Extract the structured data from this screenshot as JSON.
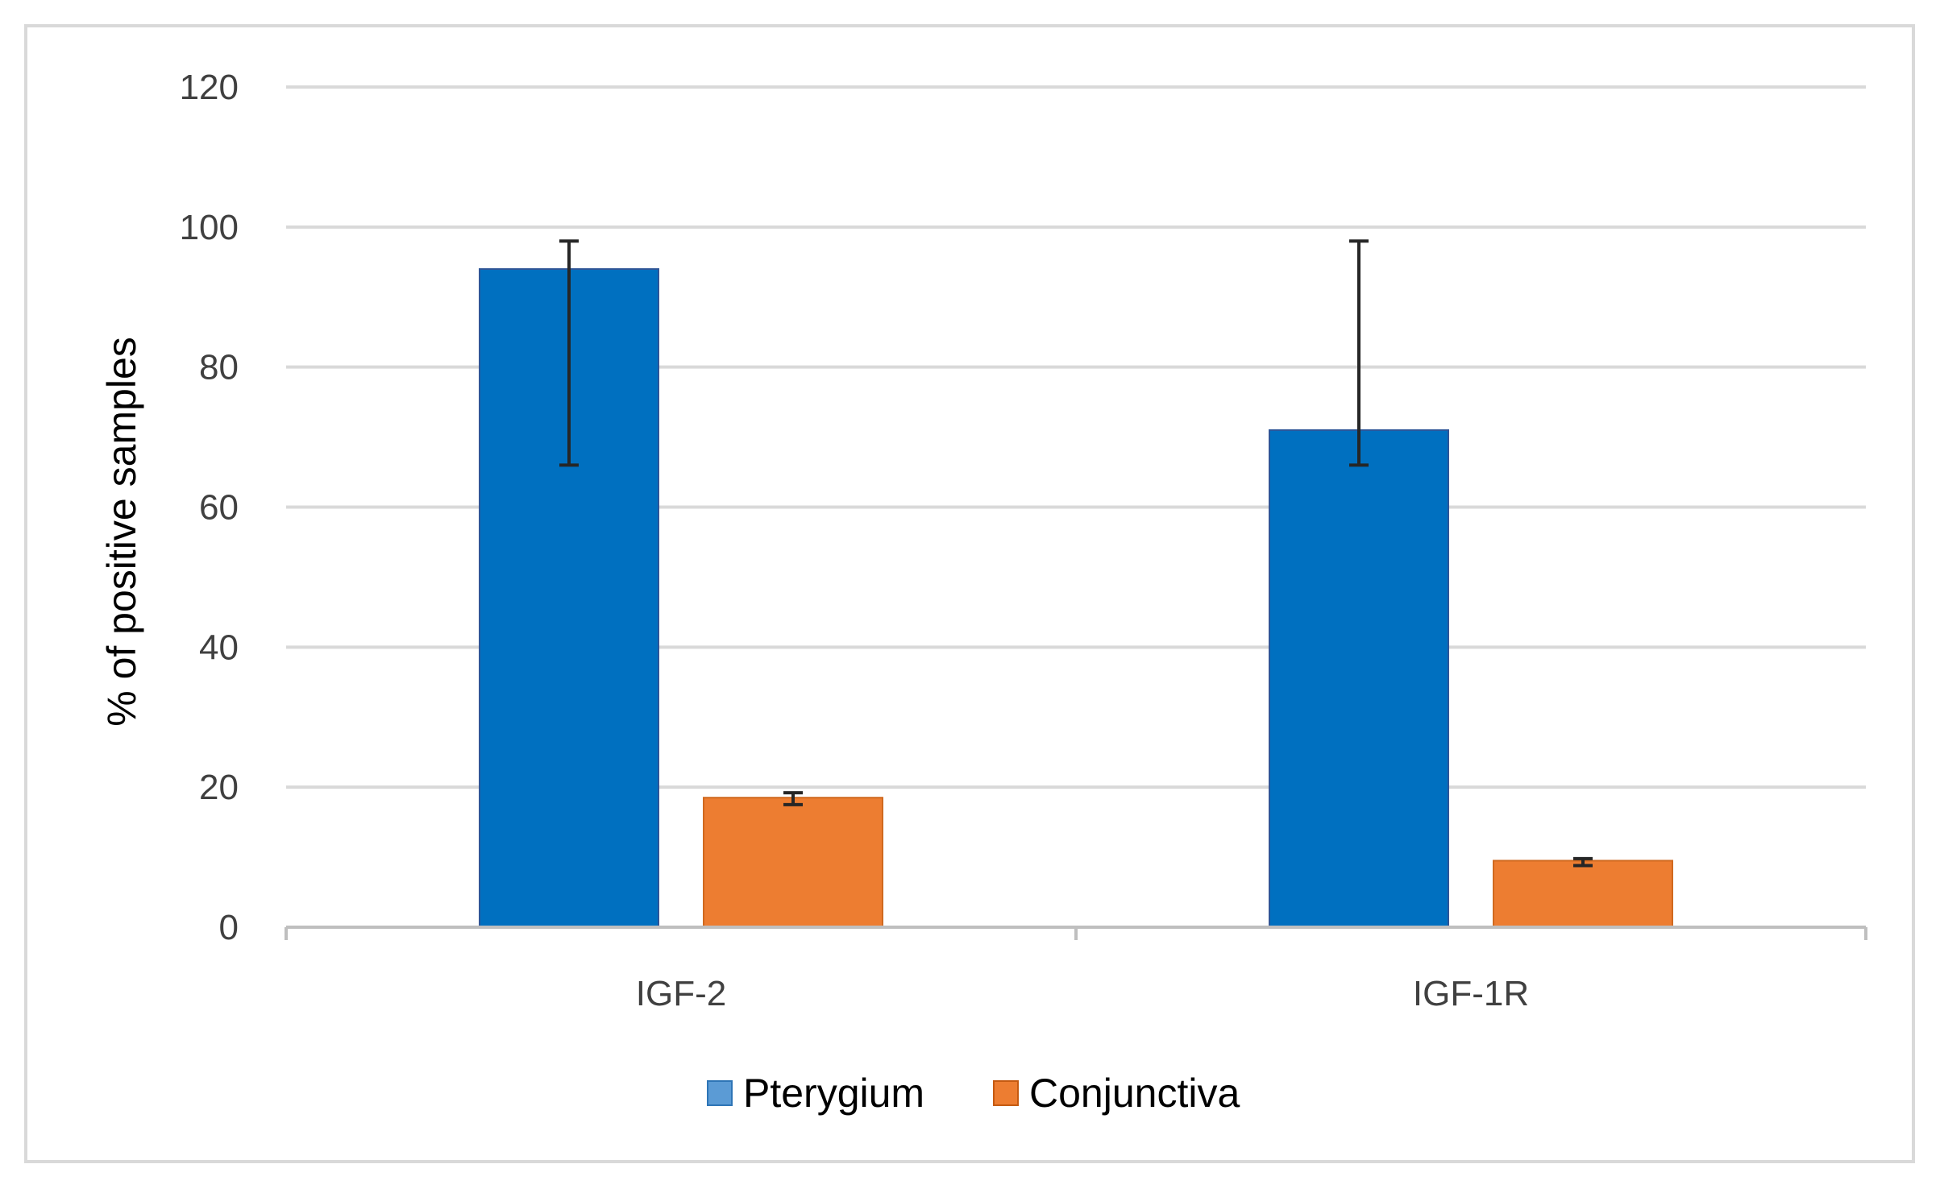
{
  "chart_data": {
    "type": "bar",
    "title": "",
    "xlabel": "",
    "ylabel": "% of positive samples",
    "ylim": [
      0,
      120
    ],
    "yticks": [
      0,
      20,
      40,
      60,
      80,
      100,
      120
    ],
    "grid": true,
    "legend_position": "bottom",
    "categories": [
      "IGF-2",
      "IGF-1R"
    ],
    "series": [
      {
        "name": "Pterygium",
        "color": "#0070c0",
        "values": [
          94,
          71
        ],
        "error_low": [
          66,
          66
        ],
        "error_high": [
          98,
          98
        ]
      },
      {
        "name": "Conjunctiva",
        "color": "#ed7d31",
        "values": [
          18.5,
          9.5
        ],
        "error_low": [
          17.5,
          8.8
        ],
        "error_high": [
          19.2,
          9.8
        ]
      }
    ]
  }
}
